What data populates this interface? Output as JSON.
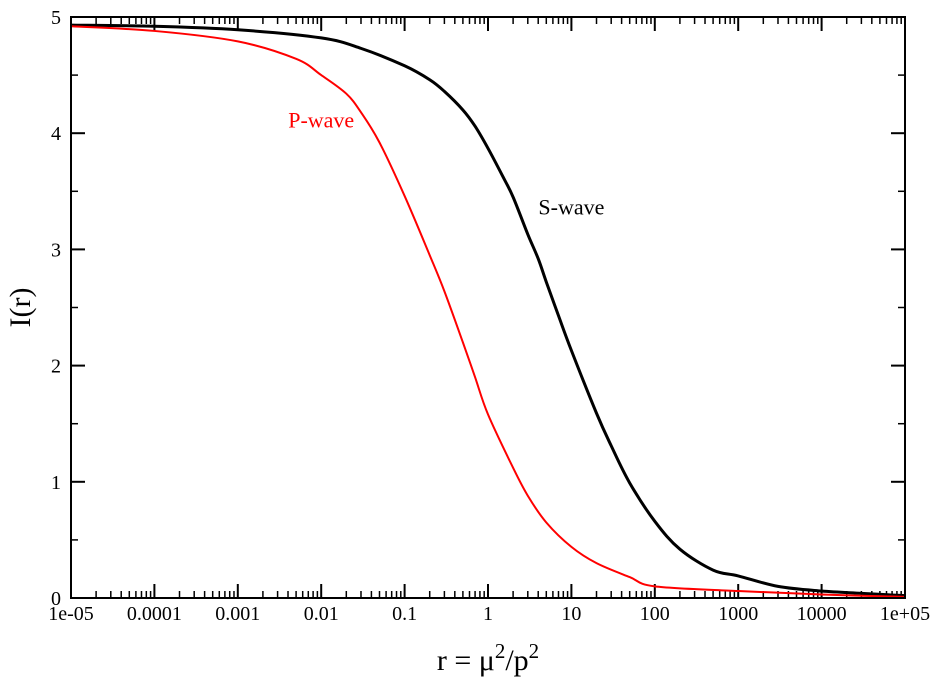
{
  "chart_data": {
    "type": "line",
    "title": "",
    "xlabel": {
      "base": "r = μ",
      "exp1": "2",
      "mid": "/p",
      "exp2": "2"
    },
    "ylabel": "I(r)",
    "xscale": "log",
    "xlim": [
      1e-05,
      100000
    ],
    "ylim": [
      0,
      5
    ],
    "grid": false,
    "x_ticks": [
      {
        "value": 1e-05,
        "label": "1e-05"
      },
      {
        "value": 0.0001,
        "label": "0.0001"
      },
      {
        "value": 0.001,
        "label": "0.001"
      },
      {
        "value": 0.01,
        "label": "0.01"
      },
      {
        "value": 0.1,
        "label": "0.1"
      },
      {
        "value": 1,
        "label": "1"
      },
      {
        "value": 10,
        "label": "10"
      },
      {
        "value": 100,
        "label": "100"
      },
      {
        "value": 1000,
        "label": "1000"
      },
      {
        "value": 10000,
        "label": "10000"
      },
      {
        "value": 100000,
        "label": "1e+05"
      }
    ],
    "y_ticks": [
      {
        "value": 0,
        "label": "0"
      },
      {
        "value": 1,
        "label": "1"
      },
      {
        "value": 2,
        "label": "2"
      },
      {
        "value": 3,
        "label": "3"
      },
      {
        "value": 4,
        "label": "4"
      },
      {
        "value": 5,
        "label": "5"
      }
    ],
    "series": [
      {
        "name": "S-wave",
        "color": "#000000",
        "x": [
          1e-05,
          0.0001,
          0.001,
          0.01,
          0.03,
          0.1,
          0.2,
          0.3,
          0.5,
          0.7,
          1,
          1.5,
          2,
          3,
          4,
          5,
          7,
          10,
          20,
          30,
          50,
          100,
          200,
          500,
          1000,
          3000,
          10000,
          30000,
          100000
        ],
        "y": [
          4.93,
          4.92,
          4.89,
          4.82,
          4.73,
          4.58,
          4.46,
          4.36,
          4.2,
          4.06,
          3.87,
          3.63,
          3.45,
          3.13,
          2.92,
          2.72,
          2.43,
          2.13,
          1.59,
          1.31,
          0.99,
          0.66,
          0.42,
          0.24,
          0.19,
          0.1,
          0.06,
          0.04,
          0.02
        ]
      },
      {
        "name": "P-wave",
        "color": "#ff0000",
        "x": [
          1e-05,
          0.0001,
          0.001,
          0.005,
          0.01,
          0.02,
          0.03,
          0.05,
          0.1,
          0.2,
          0.3,
          0.5,
          0.7,
          1,
          2,
          3,
          5,
          10,
          20,
          50,
          100,
          1000,
          10000,
          100000
        ],
        "y": [
          4.92,
          4.88,
          4.79,
          4.64,
          4.5,
          4.34,
          4.18,
          3.92,
          3.46,
          2.95,
          2.64,
          2.2,
          1.9,
          1.58,
          1.12,
          0.88,
          0.65,
          0.44,
          0.3,
          0.18,
          0.1,
          0.06,
          0.03,
          0.01
        ]
      }
    ],
    "annotations": [
      {
        "text": "P-wave",
        "color": "#ff0000",
        "x": 0.01,
        "y": 4.05
      },
      {
        "text": "S-wave",
        "color": "#000000",
        "x": 10,
        "y": 3.3
      }
    ]
  }
}
